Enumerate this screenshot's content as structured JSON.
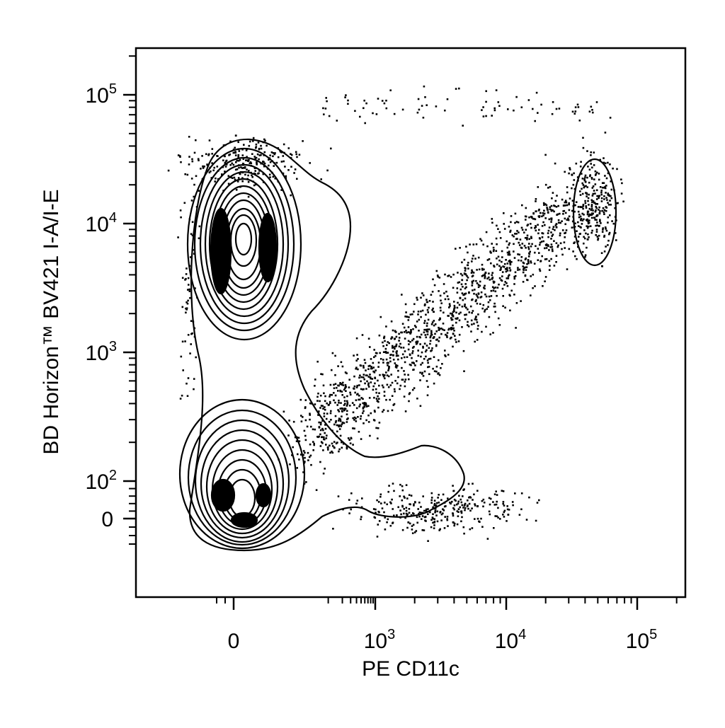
{
  "chart_data": {
    "type": "scatter",
    "subtype": "flow-cytometry-contour-with-outliers",
    "title": "",
    "xlabel": "PE CD11c",
    "ylabel": "BD Horizon™ BV421 I-A/I-E",
    "x_scale": "biexponential",
    "y_scale": "biexponential",
    "xlim": [
      -300,
      250000
    ],
    "ylim": [
      -400,
      250000
    ],
    "x_ticks": [
      {
        "value": 0,
        "base": "0",
        "exp": ""
      },
      {
        "value": 1000,
        "base": "10",
        "exp": "3"
      },
      {
        "value": 10000,
        "base": "10",
        "exp": "4"
      },
      {
        "value": 100000,
        "base": "10",
        "exp": "5"
      }
    ],
    "y_ticks": [
      {
        "value": 0,
        "base": "0",
        "exp": ""
      },
      {
        "value": 100,
        "base": "10",
        "exp": "2"
      },
      {
        "value": 1000,
        "base": "10",
        "exp": "3"
      },
      {
        "value": 10000,
        "base": "10",
        "exp": "4"
      },
      {
        "value": 100000,
        "base": "10",
        "exp": "5"
      }
    ],
    "populations": [
      {
        "x": 30,
        "y": 6000
      },
      {
        "x": 30,
        "y": 40
      },
      {
        "x": 40000,
        "y": 12000
      }
    ],
    "grid": false,
    "legend": "none",
    "colors": {
      "ink": "#000000",
      "background": "#ffffff"
    }
  }
}
